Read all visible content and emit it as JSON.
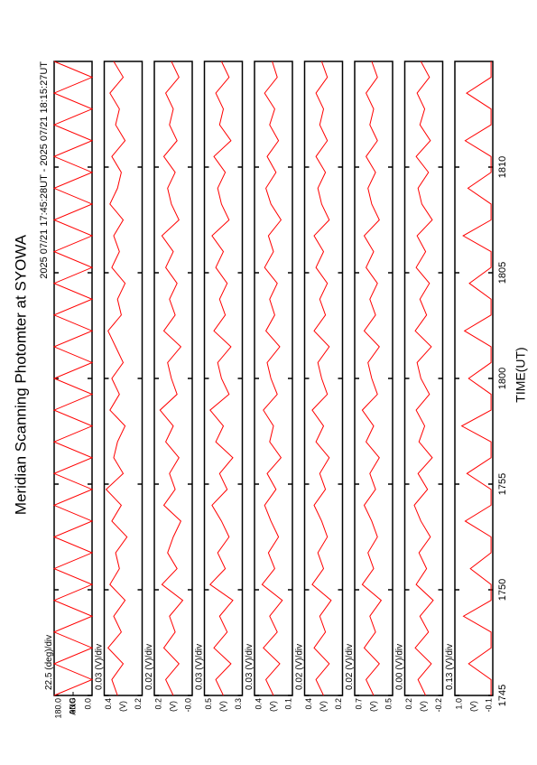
{
  "title": "Meridian Scanning Photomter at SYOWA",
  "subtitle": "2025 07/21 17:45:28UT - 2025 07/21 18:15:27UT",
  "xlabel": "TIME(UT)",
  "xlim": [
    1065,
    1095
  ],
  "xticks": [
    {
      "value": 1065,
      "label": "1745"
    },
    {
      "value": 1070,
      "label": "1750"
    },
    {
      "value": 1075,
      "label": "1755"
    },
    {
      "value": 1080,
      "label": "1800"
    },
    {
      "value": 1085,
      "label": "1805"
    },
    {
      "value": 1090,
      "label": "1810"
    }
  ],
  "x": [
    1065,
    1065.75,
    1066.5,
    1067.25,
    1068,
    1068.75,
    1069.5,
    1070.25,
    1071,
    1071.75,
    1072.5,
    1073.25,
    1074,
    1074.75,
    1075.5,
    1076.25,
    1077,
    1077.75,
    1078.5,
    1079.25,
    1080,
    1080.75,
    1081.5,
    1082.25,
    1083,
    1083.75,
    1084.5,
    1085.25,
    1086,
    1086.75,
    1087.5,
    1088.25,
    1089,
    1089.75,
    1090.5,
    1091.25,
    1092,
    1092.75,
    1093.5,
    1094.25,
    1095
  ],
  "chart_data": [
    {
      "type": "line",
      "ylabel": "ANG",
      "annotation": "22.5 (deg)/div",
      "color": "#ff0000",
      "ylim": [
        0,
        180
      ],
      "yticks": [
        {
          "value": 180,
          "label": "180.0"
        },
        {
          "value": 90,
          "label": "90.0"
        },
        {
          "value": 0,
          "label": "0.0"
        }
      ],
      "values": [
        180,
        0,
        180,
        0,
        180,
        0,
        180,
        0,
        180,
        0,
        180,
        0,
        180,
        0,
        180,
        0,
        180,
        0,
        180,
        0,
        180,
        0,
        180,
        0,
        180,
        0,
        180,
        0,
        180,
        0,
        180,
        0,
        180,
        0,
        180,
        0,
        180,
        0,
        180,
        0,
        180
      ]
    },
    {
      "type": "line",
      "ylabel": "(V)",
      "annotation": "0.03 (V)/div",
      "color": "#ff0000",
      "ylim": [
        0.2,
        0.4
      ],
      "yticks": [
        0.4,
        0.2
      ],
      "values": [
        0.33,
        0.36,
        0.3,
        0.38,
        0.31,
        0.35,
        0.29,
        0.37,
        0.32,
        0.34,
        0.28,
        0.36,
        0.31,
        0.39,
        0.3,
        0.35,
        0.33,
        0.29,
        0.37,
        0.32,
        0.36,
        0.3,
        0.34,
        0.38,
        0.31,
        0.33,
        0.29,
        0.36,
        0.32,
        0.35,
        0.3,
        0.37,
        0.33,
        0.31,
        0.36,
        0.29,
        0.34,
        0.32,
        0.37,
        0.3,
        0.35
      ]
    },
    {
      "type": "line",
      "ylabel": "(V)",
      "annotation": "0.02 (V)/div",
      "color": "#ff0000",
      "ylim": [
        0,
        0.2
      ],
      "yticks": [
        0.2,
        {
          "value": 0,
          "label": "-0.0"
        }
      ],
      "values": [
        0.1,
        0.14,
        0.07,
        0.15,
        0.09,
        0.12,
        0.05,
        0.16,
        0.08,
        0.13,
        0.1,
        0.06,
        0.15,
        0.09,
        0.12,
        0.07,
        0.14,
        0.1,
        0.17,
        0.08,
        0.11,
        0.13,
        0.06,
        0.15,
        0.09,
        0.12,
        0.08,
        0.14,
        0.1,
        0.16,
        0.07,
        0.11,
        0.13,
        0.09,
        0.15,
        0.08,
        0.12,
        0.1,
        0.14,
        0.07,
        0.11
      ]
    },
    {
      "type": "line",
      "ylabel": "(V)",
      "annotation": "0.03 (V)/div",
      "color": "#ff0000",
      "ylim": [
        0.3,
        0.5
      ],
      "yticks": [
        0.5,
        0.3
      ],
      "values": [
        0.4,
        0.44,
        0.36,
        0.45,
        0.38,
        0.42,
        0.35,
        0.47,
        0.39,
        0.43,
        0.37,
        0.41,
        0.46,
        0.38,
        0.42,
        0.35,
        0.44,
        0.4,
        0.47,
        0.37,
        0.41,
        0.43,
        0.36,
        0.45,
        0.39,
        0.42,
        0.38,
        0.44,
        0.4,
        0.46,
        0.37,
        0.41,
        0.43,
        0.39,
        0.45,
        0.36,
        0.42,
        0.4,
        0.44,
        0.37,
        0.41
      ]
    },
    {
      "type": "line",
      "ylabel": "(V)",
      "annotation": "0.03 (V)/div",
      "color": "#ff0000",
      "ylim": [
        0.1,
        0.4
      ],
      "yticks": [
        0.4,
        0.1
      ],
      "values": [
        0.25,
        0.31,
        0.2,
        0.33,
        0.22,
        0.28,
        0.18,
        0.34,
        0.24,
        0.29,
        0.21,
        0.27,
        0.32,
        0.23,
        0.3,
        0.19,
        0.28,
        0.25,
        0.33,
        0.22,
        0.27,
        0.3,
        0.2,
        0.31,
        0.24,
        0.28,
        0.22,
        0.32,
        0.25,
        0.29,
        0.19,
        0.27,
        0.31,
        0.23,
        0.3,
        0.21,
        0.28,
        0.24,
        0.32,
        0.22,
        0.26
      ]
    },
    {
      "type": "line",
      "ylabel": "(V)",
      "annotation": "0.02 (V)/div",
      "color": "#ff0000",
      "ylim": [
        0.2,
        0.4
      ],
      "yticks": [
        0.4,
        0.2
      ],
      "values": [
        0.3,
        0.34,
        0.27,
        0.35,
        0.29,
        0.32,
        0.26,
        0.36,
        0.3,
        0.33,
        0.28,
        0.31,
        0.35,
        0.29,
        0.32,
        0.27,
        0.34,
        0.3,
        0.36,
        0.28,
        0.31,
        0.33,
        0.27,
        0.35,
        0.29,
        0.32,
        0.28,
        0.34,
        0.3,
        0.35,
        0.27,
        0.31,
        0.33,
        0.29,
        0.34,
        0.28,
        0.32,
        0.3,
        0.34,
        0.28,
        0.31
      ]
    },
    {
      "type": "line",
      "ylabel": "(V)",
      "annotation": "0.02 (V)/div",
      "color": "#ff0000",
      "ylim": [
        0.5,
        0.7
      ],
      "yticks": [
        0.7,
        0.5
      ],
      "values": [
        0.6,
        0.64,
        0.57,
        0.65,
        0.59,
        0.62,
        0.56,
        0.66,
        0.6,
        0.63,
        0.58,
        0.61,
        0.65,
        0.59,
        0.62,
        0.57,
        0.64,
        0.6,
        0.66,
        0.58,
        0.61,
        0.63,
        0.57,
        0.65,
        0.59,
        0.62,
        0.58,
        0.64,
        0.6,
        0.65,
        0.57,
        0.61,
        0.63,
        0.59,
        0.64,
        0.58,
        0.62,
        0.6,
        0.64,
        0.58,
        0.61
      ]
    },
    {
      "type": "line",
      "ylabel": "(V)",
      "annotation": "0.00 (V)/div",
      "color": "#ff0000",
      "ylim": [
        -0.2,
        0.2
      ],
      "yticks": [
        0.2,
        -0.2
      ],
      "values": [
        -0.02,
        0.06,
        -0.08,
        0.09,
        -0.05,
        0.04,
        -0.1,
        0.08,
        -0.03,
        0.05,
        -0.07,
        0.03,
        0.1,
        -0.04,
        0.06,
        -0.09,
        0.05,
        -0.01,
        0.08,
        -0.06,
        0.03,
        0.07,
        -0.08,
        0.09,
        -0.03,
        0.04,
        -0.06,
        0.08,
        -0.02,
        0.07,
        -0.09,
        0.02,
        0.06,
        -0.05,
        0.08,
        -0.07,
        0.04,
        -0.01,
        0.07,
        -0.06,
        0.03
      ]
    },
    {
      "type": "line",
      "ylabel": "(V)",
      "annotation": "0.13 (V)/div",
      "color": "#ff0000",
      "ylim": [
        -0.1,
        1.0
      ],
      "yticks": [
        {
          "value": 1.0,
          "label": "1.0"
        },
        -0.1
      ],
      "values": [
        -0.05,
        -0.05,
        0.6,
        -0.05,
        -0.05,
        0.75,
        -0.05,
        -0.05,
        0.55,
        -0.05,
        -0.05,
        0.7,
        -0.05,
        -0.05,
        0.65,
        -0.05,
        -0.05,
        0.8,
        -0.05,
        -0.05,
        0.6,
        -0.05,
        -0.05,
        0.72,
        -0.05,
        -0.05,
        0.58,
        -0.05,
        -0.05,
        0.76,
        -0.05,
        -0.05,
        0.62,
        -0.05,
        -0.05,
        0.7,
        -0.05,
        -0.05,
        0.66,
        -0.05,
        -0.05
      ]
    }
  ]
}
